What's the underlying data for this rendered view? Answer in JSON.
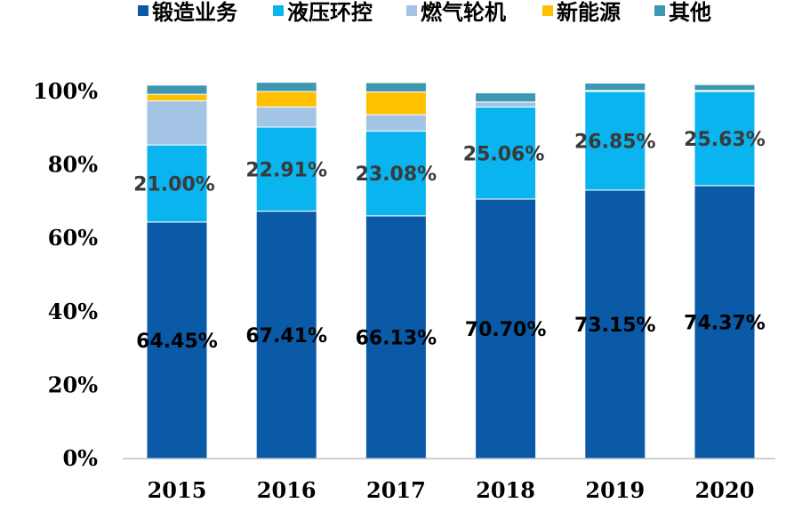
{
  "chart_data": {
    "type": "bar",
    "stacked": true,
    "percent_stacked": true,
    "title": "",
    "xlabel": "",
    "ylabel": "",
    "categories": [
      "2015",
      "2016",
      "2017",
      "2018",
      "2019",
      "2020"
    ],
    "y_ticks": [
      "0%",
      "20%",
      "40%",
      "60%",
      "80%",
      "100%"
    ],
    "ylim": [
      0,
      100
    ],
    "grid": false,
    "legend_position": "top",
    "series": [
      {
        "name": "锻造业务",
        "color": "#0a5aa8",
        "values": [
          64.45,
          67.41,
          66.13,
          70.7,
          73.15,
          74.37
        ],
        "labels": [
          "64.45%",
          "67.41%",
          "66.13%",
          "70.70%",
          "73.15%",
          "74.37%"
        ],
        "label_style": "dark"
      },
      {
        "name": "液压环控",
        "color": "#0ab4ee",
        "values": [
          21.0,
          22.91,
          23.08,
          25.06,
          26.85,
          25.63
        ],
        "labels": [
          "21.00%",
          "22.91%",
          "23.08%",
          "25.06%",
          "26.85%",
          "25.63%"
        ],
        "label_style": "light"
      },
      {
        "name": "燃气轮机",
        "color": "#a4c4e6",
        "values": [
          12.0,
          5.5,
          4.5,
          1.4,
          0.3,
          0.3
        ]
      },
      {
        "name": "新能源",
        "color": "#ffc000",
        "values": [
          1.8,
          4.2,
          6.2,
          0.0,
          0.0,
          0.0
        ]
      },
      {
        "name": "其他",
        "color": "#3d97b0",
        "values": [
          2.5,
          2.5,
          2.5,
          2.5,
          2.0,
          1.6
        ]
      }
    ]
  }
}
